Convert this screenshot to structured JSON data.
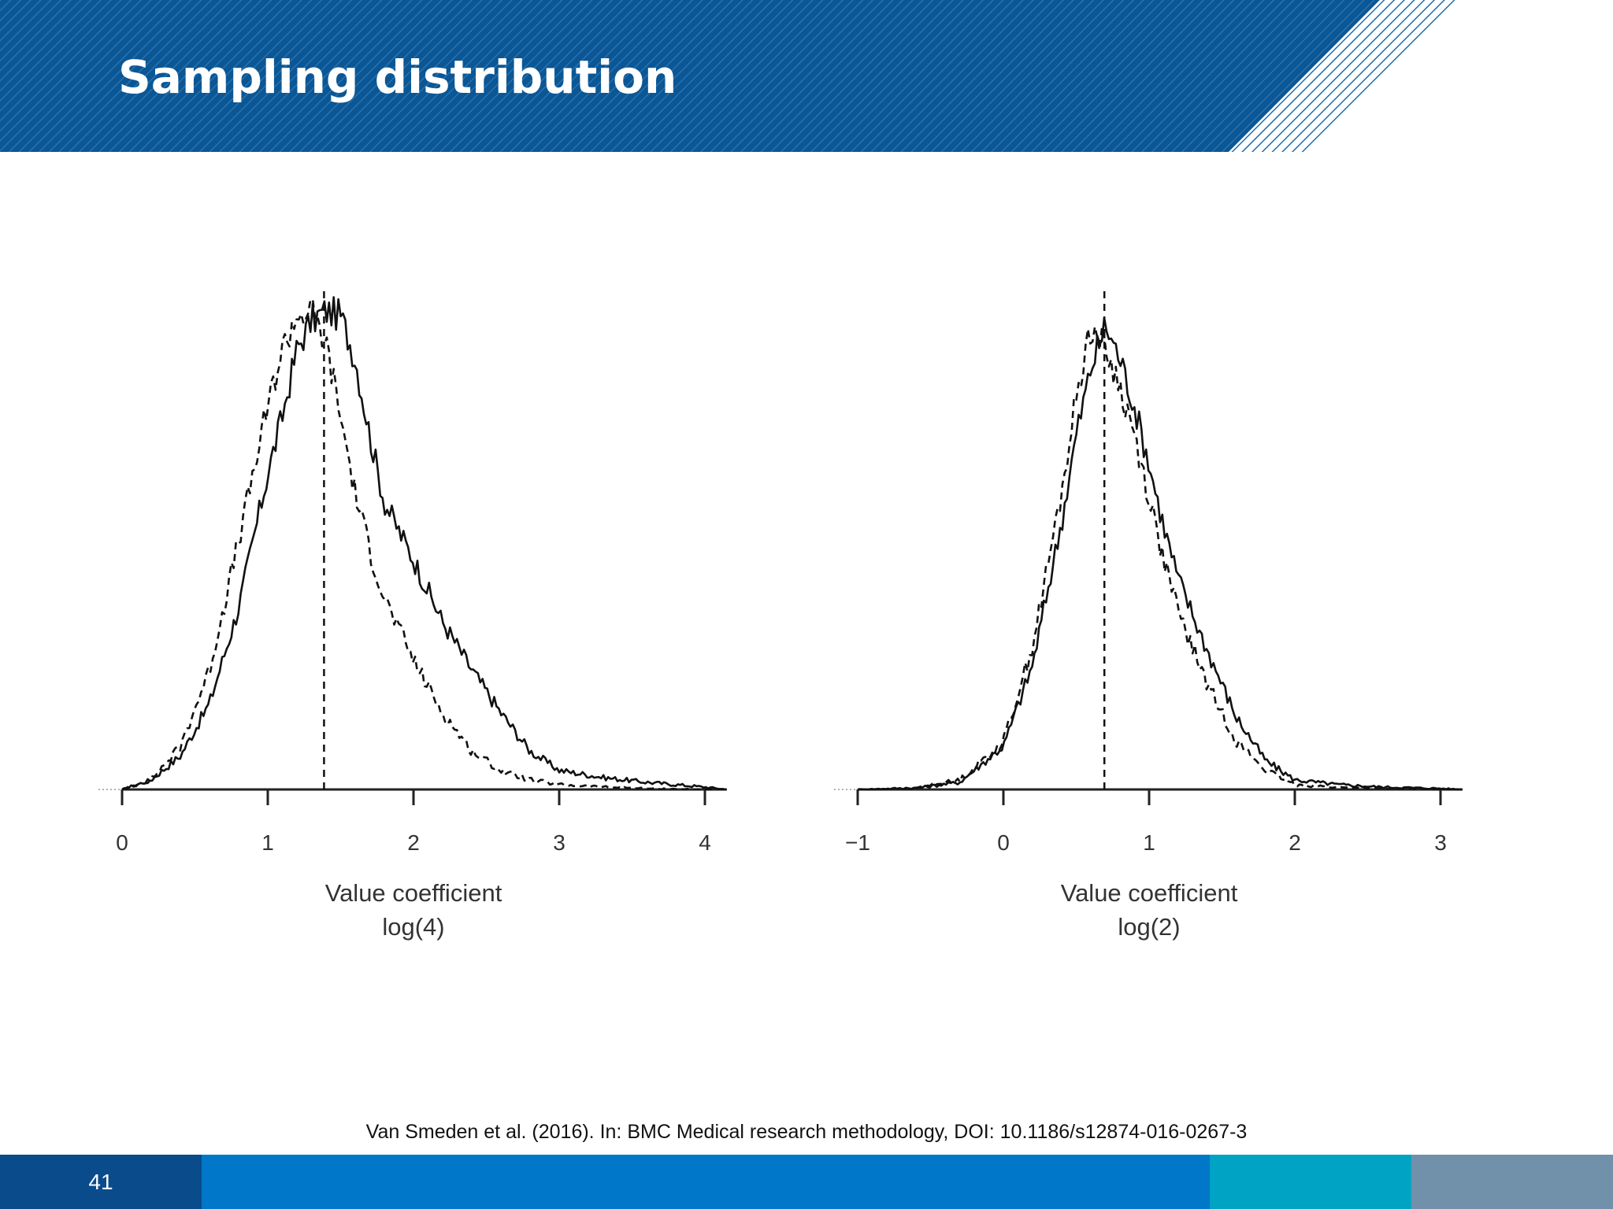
{
  "slide": {
    "title": "Sampling distribution",
    "citation": "Van Smeden et al. (2016). In: BMC Medical research methodology, DOI: 10.1186/s12874-016-0267-3",
    "page_number": "41"
  },
  "colors": {
    "header_blue": "#0b5694",
    "stripe": "#2e77b5",
    "footer_dark": "#0a4b8c",
    "footer_mid": "#0077c8",
    "footer_teal": "#00a3c4",
    "footer_gray": "#7191aa"
  },
  "chart_data": [
    {
      "type": "line",
      "xlabel": "Value coefficient",
      "xlabel2": "log(4)",
      "xlim": [
        0,
        4.15
      ],
      "ticks": [
        "0",
        "1",
        "2",
        "3",
        "4"
      ],
      "tick_values": [
        0,
        1,
        2,
        3,
        4
      ],
      "reference_line": 1.386,
      "series": [
        {
          "style": "solid",
          "x": [
            0.0,
            0.2,
            0.4,
            0.6,
            0.8,
            1.0,
            1.1,
            1.2,
            1.3,
            1.4,
            1.5,
            1.6,
            1.7,
            1.8,
            2.0,
            2.2,
            2.4,
            2.6,
            2.8,
            3.0,
            3.3,
            3.6,
            4.0,
            4.15
          ],
          "y": [
            0.0,
            0.02,
            0.07,
            0.18,
            0.38,
            0.66,
            0.78,
            0.92,
            0.98,
            1.0,
            0.99,
            0.9,
            0.74,
            0.6,
            0.48,
            0.35,
            0.25,
            0.16,
            0.08,
            0.04,
            0.025,
            0.015,
            0.005,
            0.0
          ]
        },
        {
          "style": "dashed",
          "x": [
            0.0,
            0.2,
            0.4,
            0.6,
            0.8,
            1.0,
            1.1,
            1.2,
            1.3,
            1.4,
            1.5,
            1.6,
            1.7,
            1.8,
            2.0,
            2.2,
            2.4,
            2.6,
            2.8,
            3.0,
            3.3,
            3.6,
            4.0,
            4.15
          ],
          "y": [
            0.0,
            0.02,
            0.09,
            0.25,
            0.52,
            0.8,
            0.92,
            0.99,
            1.0,
            0.93,
            0.78,
            0.62,
            0.5,
            0.4,
            0.27,
            0.16,
            0.08,
            0.04,
            0.02,
            0.01,
            0.005,
            0.002,
            0.0,
            0.0
          ]
        }
      ]
    },
    {
      "type": "line",
      "xlabel": "Value coefficient",
      "xlabel2": "log(2)",
      "xlim": [
        -1,
        3.15
      ],
      "ticks": [
        "−1",
        "0",
        "1",
        "2",
        "3"
      ],
      "tick_values": [
        -1,
        0,
        1,
        2,
        3
      ],
      "reference_line": 0.693,
      "series": [
        {
          "style": "solid",
          "x": [
            -1.0,
            -0.6,
            -0.3,
            0.0,
            0.2,
            0.4,
            0.5,
            0.6,
            0.7,
            0.8,
            0.9,
            1.0,
            1.1,
            1.2,
            1.4,
            1.6,
            1.8,
            2.0,
            2.3,
            2.6,
            3.0,
            3.15
          ],
          "y": [
            0.0,
            0.003,
            0.015,
            0.09,
            0.26,
            0.56,
            0.74,
            0.88,
            0.97,
            0.9,
            0.8,
            0.68,
            0.55,
            0.44,
            0.29,
            0.15,
            0.06,
            0.02,
            0.01,
            0.005,
            0.002,
            0.0
          ]
        },
        {
          "style": "dashed",
          "x": [
            -1.0,
            -0.6,
            -0.3,
            0.0,
            0.2,
            0.4,
            0.5,
            0.6,
            0.7,
            0.8,
            0.9,
            1.0,
            1.1,
            1.2,
            1.4,
            1.6,
            1.8,
            2.0,
            2.3,
            2.6,
            3.0,
            3.15
          ],
          "y": [
            0.0,
            0.003,
            0.02,
            0.1,
            0.3,
            0.62,
            0.82,
            0.97,
            0.92,
            0.84,
            0.74,
            0.61,
            0.48,
            0.37,
            0.22,
            0.1,
            0.04,
            0.01,
            0.004,
            0.002,
            0.0,
            0.0
          ]
        }
      ]
    }
  ]
}
